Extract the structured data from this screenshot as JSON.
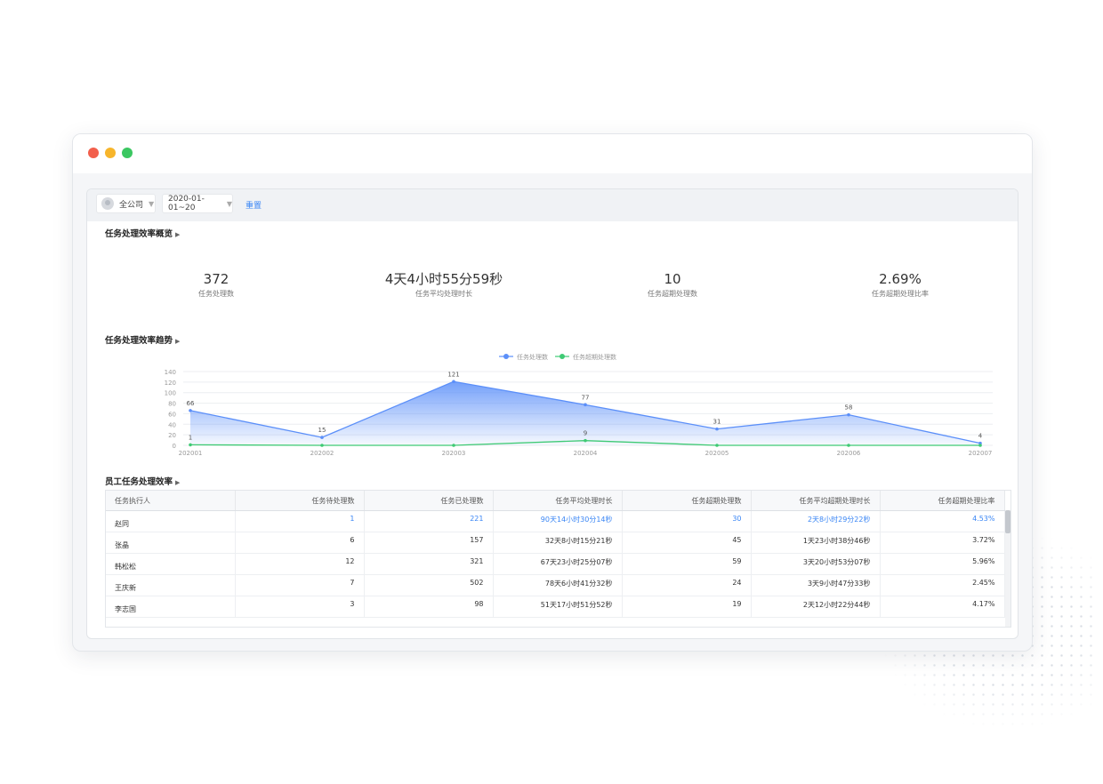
{
  "colors": {
    "traffic_red": "#f25f4c",
    "traffic_yellow": "#f7b52b",
    "traffic_green": "#3bc761",
    "accent_blue": "#3a86f5",
    "series_blue": "#5b8ff9",
    "series_green": "#3fca74"
  },
  "filters": {
    "company": "全公司",
    "date_range": "2020-01-01~20",
    "reset_label": "重置"
  },
  "overview": {
    "title": "任务处理效率概览",
    "kpis": [
      {
        "value": "372",
        "label": "任务处理数"
      },
      {
        "value": "4天4小时55分59秒",
        "label": "任务平均处理时长"
      },
      {
        "value": "10",
        "label": "任务超期处理数"
      },
      {
        "value": "2.69%",
        "label": "任务超期处理比率"
      }
    ]
  },
  "trend": {
    "title": "任务处理效率趋势"
  },
  "chart_data": {
    "type": "area",
    "categories": [
      "202001",
      "202002",
      "202003",
      "202004",
      "202005",
      "202006",
      "202007"
    ],
    "series": [
      {
        "name": "任务处理数",
        "values": [
          66,
          15,
          121,
          77,
          31,
          58,
          4
        ],
        "color": "#5b8ff9"
      },
      {
        "name": "任务超期处理数",
        "values": [
          1,
          0,
          0,
          9,
          0,
          0,
          0
        ],
        "color": "#3fca74"
      }
    ],
    "point_labels": {
      "任务处理数": [
        "66",
        "15",
        "121",
        "77",
        "31",
        "58",
        "4"
      ],
      "任务超期处理数": [
        "1",
        "",
        "",
        "9",
        "",
        "",
        ""
      ]
    },
    "y_ticks": [
      0,
      20,
      40,
      60,
      80,
      100,
      120,
      140
    ],
    "ylim": [
      0,
      140
    ],
    "grid": true,
    "legend": "top-center"
  },
  "employee": {
    "title": "员工任务处理效率",
    "columns": [
      "任务执行人",
      "任务待处理数",
      "任务已处理数",
      "任务平均处理时长",
      "任务超期处理数",
      "任务平均超期处理时长",
      "任务超期处理比率"
    ],
    "rows": [
      [
        "赵同",
        "1",
        "221",
        "90天14小时30分14秒",
        "30",
        "2天8小时29分22秒",
        "4.53%"
      ],
      [
        "张晶",
        "6",
        "157",
        "32天8小时15分21秒",
        "45",
        "1天23小时38分46秒",
        "3.72%"
      ],
      [
        "韩松松",
        "12",
        "321",
        "67天23小时25分07秒",
        "59",
        "3天20小时53分07秒",
        "5.96%"
      ],
      [
        "王庆新",
        "7",
        "502",
        "78天6小时41分32秒",
        "24",
        "3天9小时47分33秒",
        "2.45%"
      ],
      [
        "李志国",
        "3",
        "98",
        "51天17小时51分52秒",
        "19",
        "2天12小时22分44秒",
        "4.17%"
      ]
    ]
  }
}
